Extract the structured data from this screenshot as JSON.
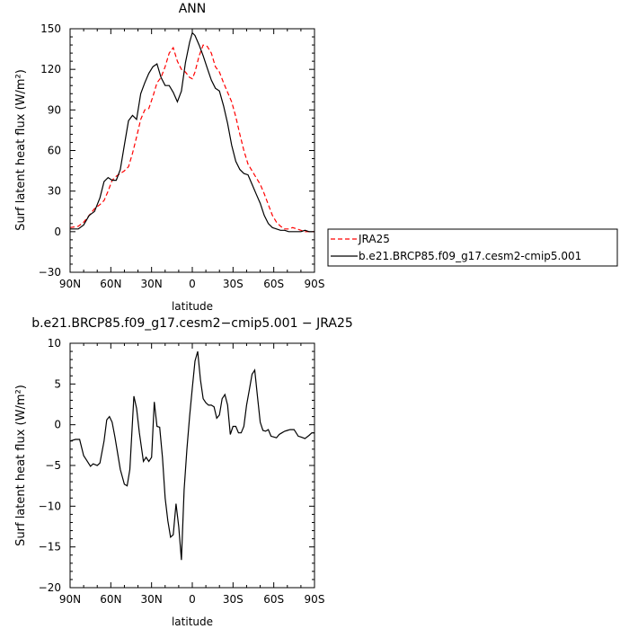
{
  "chart_data": [
    {
      "type": "line",
      "title": "ANN",
      "xlabel": "latitude",
      "ylabel": "Surf latent heat flux (W/m²)",
      "x_ticks": [
        -90,
        -60,
        -30,
        0,
        30,
        60,
        90
      ],
      "x_tick_labels": [
        "90N",
        "60N",
        "30N",
        "0",
        "30S",
        "60S",
        "90S"
      ],
      "xlim": [
        -90,
        90
      ],
      "ylim": [
        -30,
        150
      ],
      "y_ticks": [
        -30,
        0,
        30,
        60,
        90,
        120,
        150
      ],
      "grid": false,
      "legend_position": "right",
      "series": [
        {
          "name": "JRA25",
          "color": "#ff0000",
          "dash": "dashed",
          "x": [
            -90,
            -84,
            -80,
            -76,
            -72,
            -68,
            -65,
            -62,
            -59,
            -56,
            -53,
            -50,
            -47,
            -44,
            -41,
            -38,
            -35,
            -32,
            -29,
            -26,
            -23,
            -20,
            -17,
            -14,
            -11,
            -8,
            -5,
            -2,
            0,
            2,
            5,
            8,
            11,
            14,
            17,
            20,
            23,
            26,
            29,
            32,
            35,
            38,
            41,
            44,
            47,
            50,
            53,
            56,
            59,
            62,
            65,
            68,
            71,
            74,
            77,
            80,
            83,
            86,
            88,
            90
          ],
          "y": [
            3,
            4,
            7,
            12,
            17,
            20,
            23,
            30,
            38,
            41,
            43,
            45,
            48,
            58,
            70,
            83,
            90,
            91,
            100,
            110,
            114,
            122,
            132,
            136,
            126,
            120,
            118,
            114,
            113,
            118,
            130,
            138,
            137,
            132,
            122,
            118,
            110,
            103,
            96,
            85,
            72,
            60,
            50,
            45,
            40,
            35,
            28,
            20,
            12,
            7,
            4,
            2,
            2,
            3,
            2,
            1,
            0,
            0,
            0,
            0
          ]
        },
        {
          "name": "b.e21.BRCP85.f09_g17.cesm2-cmip5.001",
          "color": "#000000",
          "dash": "solid",
          "x": [
            -90,
            -84,
            -80,
            -76,
            -72,
            -68,
            -65,
            -62,
            -59,
            -56,
            -53,
            -50,
            -47,
            -44,
            -41,
            -38,
            -35,
            -32,
            -29,
            -26,
            -23,
            -20,
            -17,
            -14,
            -11,
            -8,
            -5,
            -2,
            0,
            2,
            5,
            8,
            11,
            14,
            17,
            20,
            23,
            26,
            29,
            32,
            35,
            38,
            41,
            44,
            47,
            50,
            53,
            56,
            59,
            62,
            65,
            68,
            71,
            74,
            77,
            80,
            83,
            86,
            88,
            90
          ],
          "y": [
            2,
            2,
            5,
            12,
            15,
            25,
            37,
            40,
            38,
            38,
            46,
            64,
            82,
            86,
            83,
            102,
            110,
            117,
            122,
            124,
            114,
            108,
            108,
            103,
            96,
            104,
            125,
            140,
            147,
            145,
            138,
            130,
            121,
            112,
            106,
            104,
            93,
            80,
            64,
            52,
            46,
            43,
            42,
            35,
            28,
            21,
            12,
            6,
            3,
            2,
            1,
            1,
            0,
            0,
            0,
            0,
            1,
            0,
            0,
            0
          ]
        }
      ]
    },
    {
      "type": "line",
      "title": "b.e21.BRCP85.f09_g17.cesm2−cmip5.001 − JRA25",
      "xlabel": "latitude",
      "ylabel": "Surf latent heat flux (W/m²)",
      "x_ticks": [
        -90,
        -60,
        -30,
        0,
        30,
        60,
        90
      ],
      "x_tick_labels": [
        "90N",
        "60N",
        "30N",
        "0",
        "30S",
        "60S",
        "90S"
      ],
      "xlim": [
        -90,
        90
      ],
      "ylim": [
        -20,
        10
      ],
      "y_ticks": [
        -20,
        -15,
        -10,
        -5,
        0,
        5,
        10
      ],
      "grid": false,
      "series": [
        {
          "color": "#000000",
          "dash": "solid",
          "x": [
            -90,
            -86,
            -83,
            -80,
            -78,
            -75,
            -73,
            -70,
            -68,
            -65,
            -63,
            -61,
            -59,
            -57,
            -55,
            -53,
            -50,
            -48,
            -46,
            -43,
            -41,
            -39,
            -36,
            -34,
            -32,
            -30,
            -28,
            -26,
            -24,
            -22,
            -20,
            -18,
            -16,
            -14,
            -12,
            -10,
            -8,
            -6,
            -4,
            -2,
            0,
            2,
            4,
            6,
            8,
            10,
            12,
            14,
            16,
            18,
            20,
            22,
            24,
            26,
            28,
            30,
            32,
            34,
            36,
            38,
            40,
            42,
            44,
            46,
            48,
            50,
            52,
            54,
            56,
            58,
            60,
            62,
            64,
            66,
            68,
            70,
            72,
            75,
            78,
            80,
            83,
            86,
            88,
            90
          ],
          "y": [
            -2.0,
            -1.8,
            -1.8,
            -3.8,
            -4.3,
            -5.1,
            -4.8,
            -5.0,
            -4.7,
            -2.0,
            0.6,
            1.0,
            0.3,
            -1.5,
            -3.5,
            -5.5,
            -7.3,
            -7.5,
            -5.5,
            3.5,
            2.0,
            -1.0,
            -4.5,
            -4.0,
            -4.5,
            -4.0,
            2.8,
            -0.2,
            -0.3,
            -4.0,
            -9.0,
            -11.8,
            -13.8,
            -13.5,
            -9.7,
            -12.5,
            -16.6,
            -8.0,
            -3.0,
            1.0,
            4.5,
            7.8,
            9.0,
            5.5,
            3.2,
            2.7,
            2.4,
            2.4,
            2.2,
            0.8,
            1.2,
            3.2,
            3.7,
            2.4,
            -1.2,
            -0.2,
            -0.2,
            -1.0,
            -1.0,
            -0.2,
            2.4,
            4.3,
            6.2,
            6.7,
            3.5,
            0.3,
            -0.7,
            -0.8,
            -0.6,
            -1.4,
            -1.5,
            -1.6,
            -1.2,
            -1.0,
            -0.8,
            -0.7,
            -0.6,
            -0.6,
            -1.4,
            -1.5,
            -1.7,
            -1.3,
            -1.0,
            -1.0
          ]
        }
      ]
    }
  ]
}
